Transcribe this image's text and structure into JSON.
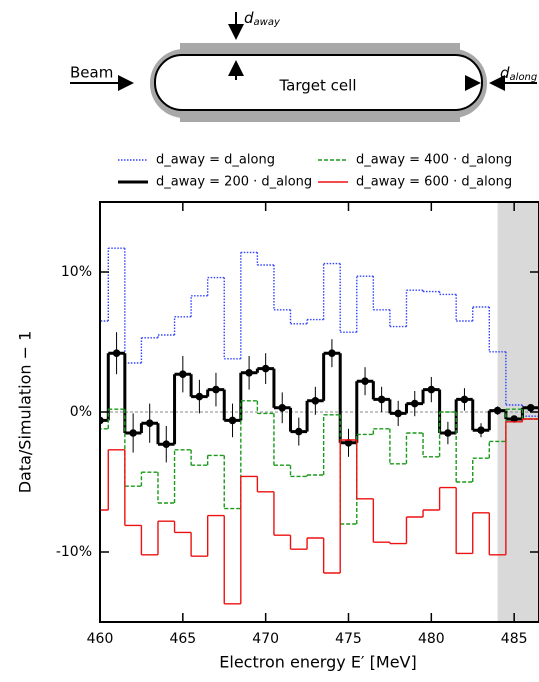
{
  "diagram": {
    "beam_label": "Beam",
    "cell_label": "Target cell",
    "d_away": {
      "symbol": "d",
      "sub": "away"
    },
    "d_along": {
      "symbol": "d",
      "sub": "along"
    }
  },
  "chart_data": {
    "type": "step",
    "x_label": "Electron energy E′ [MeV]",
    "y_label": "Data/Simulation − 1",
    "xlim": [
      460,
      486.5
    ],
    "ylim": [
      -15,
      15
    ],
    "xticks": [
      460,
      465,
      470,
      475,
      480,
      485
    ],
    "yticks": [
      {
        "value": -10,
        "label": "-10%"
      },
      {
        "value": 0,
        "label": "0%"
      },
      {
        "value": 10,
        "label": "10%"
      }
    ],
    "shaded_from": 484,
    "shade_color": "#d9d9d9",
    "zero_line": true,
    "x": [
      460,
      461,
      462,
      463,
      464,
      465,
      466,
      467,
      468,
      469,
      470,
      471,
      472,
      473,
      474,
      475,
      476,
      477,
      478,
      479,
      480,
      481,
      482,
      483,
      484,
      485,
      486
    ],
    "series": [
      {
        "name": "d_away = d_along",
        "color": "#3344ff",
        "line_style": "dotted",
        "values": [
          6.5,
          11.7,
          3.5,
          5.3,
          5.5,
          6.8,
          8.3,
          9.6,
          3.8,
          11.4,
          10.5,
          7.3,
          6.3,
          6.6,
          10.6,
          5.7,
          9.7,
          7.3,
          6.1,
          8.7,
          8.6,
          8.4,
          6.5,
          7.5,
          4.3,
          0.5,
          -0.3
        ]
      },
      {
        "name": "d_away = 200 · d_along",
        "color": "#000000",
        "line_style": "solid",
        "markers": true,
        "values": [
          -0.6,
          4.2,
          -1.5,
          -0.8,
          -2.3,
          2.7,
          1.1,
          1.6,
          -0.6,
          2.8,
          3.1,
          0.3,
          -1.4,
          0.8,
          4.2,
          -2.2,
          2.2,
          0.9,
          -0.1,
          0.6,
          1.6,
          -1.5,
          0.9,
          -1.3,
          0.1,
          -0.5,
          0.3
        ],
        "errors": [
          1.5,
          1.5,
          1.4,
          1.4,
          1.3,
          1.3,
          1.2,
          1.2,
          1.2,
          1.2,
          1.1,
          1.1,
          1.0,
          1.0,
          1.0,
          1.0,
          1.0,
          0.9,
          0.9,
          0.9,
          0.9,
          0.8,
          0.8,
          0.5,
          0.3,
          0.2,
          0.2
        ]
      },
      {
        "name": "d_away = 400 · d_along",
        "color": "#1a9a1a",
        "line_style": "dashed",
        "values": [
          -1.2,
          0.2,
          -5.3,
          -4.3,
          -6.5,
          -2.7,
          -3.8,
          -3.1,
          -6.9,
          0.8,
          -0.1,
          -3.8,
          -4.6,
          -4.5,
          -0.2,
          -8.0,
          -1.6,
          -1.2,
          -3.7,
          -1.5,
          -3.2,
          0.0,
          -5.0,
          -3.3,
          -2.1,
          0.2,
          -0.5
        ]
      },
      {
        "name": "d_away = 600 · d_along",
        "color": "#ee1111",
        "line_style": "solid",
        "values": [
          -7.0,
          -2.7,
          -8.1,
          -10.2,
          -7.8,
          -8.6,
          -10.3,
          -7.4,
          -13.7,
          -4.6,
          -5.7,
          -8.8,
          -9.8,
          -9.0,
          -11.5,
          -2.0,
          -6.2,
          -9.3,
          -9.4,
          -7.5,
          -7.0,
          -5.4,
          -10.1,
          -7.2,
          -10.2,
          -0.7,
          -0.5
        ]
      }
    ]
  }
}
